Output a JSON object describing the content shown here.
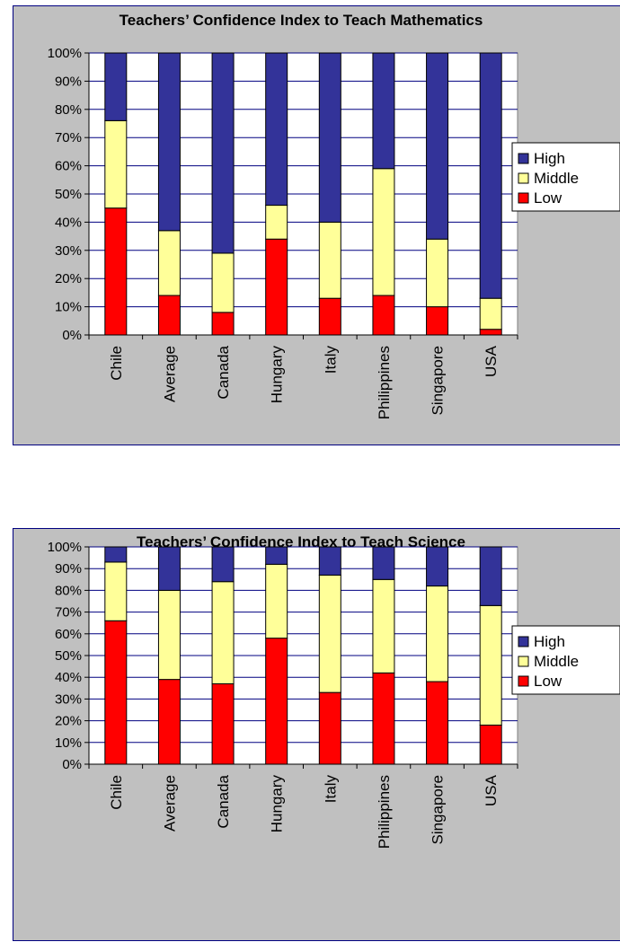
{
  "charts": [
    {
      "id": "math",
      "chart_data": {
        "type": "bar",
        "stacked": true,
        "percent": true,
        "title": "Teachers’ Confidence Index to Teach Mathematics",
        "categories": [
          "Chile",
          "Average",
          "Canada",
          "Hungary",
          "Italy",
          "Philippines",
          "Singapore",
          "USA"
        ],
        "series": [
          {
            "name": "Low",
            "color": "#ff0000",
            "values": [
              45,
              14,
              8,
              34,
              13,
              14,
              10,
              2
            ]
          },
          {
            "name": "Middle",
            "color": "#ffff99",
            "values": [
              31,
              23,
              21,
              12,
              27,
              45,
              24,
              11
            ]
          },
          {
            "name": "High",
            "color": "#333399",
            "values": [
              24,
              63,
              71,
              54,
              60,
              41,
              66,
              87
            ]
          }
        ],
        "yticks": [
          "0%",
          "10%",
          "20%",
          "30%",
          "40%",
          "50%",
          "60%",
          "70%",
          "80%",
          "90%",
          "100%"
        ],
        "ylim": [
          0,
          100
        ],
        "grid": true,
        "legend": {
          "position": "right",
          "order": [
            "High",
            "Middle",
            "Low"
          ]
        }
      }
    },
    {
      "id": "science",
      "chart_data": {
        "type": "bar",
        "stacked": true,
        "percent": true,
        "title": "Teachers’ Confidence Index to Teach Science",
        "categories": [
          "Chile",
          "Average",
          "Canada",
          "Hungary",
          "Italy",
          "Philippines",
          "Singapore",
          "USA"
        ],
        "series": [
          {
            "name": "Low",
            "color": "#ff0000",
            "values": [
              66,
              39,
              37,
              58,
              33,
              42,
              38,
              18
            ]
          },
          {
            "name": "Middle",
            "color": "#ffff99",
            "values": [
              27,
              41,
              47,
              34,
              54,
              43,
              44,
              55
            ]
          },
          {
            "name": "High",
            "color": "#333399",
            "values": [
              7,
              20,
              16,
              8,
              13,
              15,
              18,
              27
            ]
          }
        ],
        "yticks": [
          "0%",
          "10%",
          "20%",
          "30%",
          "40%",
          "50%",
          "60%",
          "70%",
          "80%",
          "90%",
          "100%"
        ],
        "ylim": [
          0,
          100
        ],
        "grid": true,
        "legend": {
          "position": "right",
          "order": [
            "High",
            "Middle",
            "Low"
          ]
        }
      }
    }
  ]
}
